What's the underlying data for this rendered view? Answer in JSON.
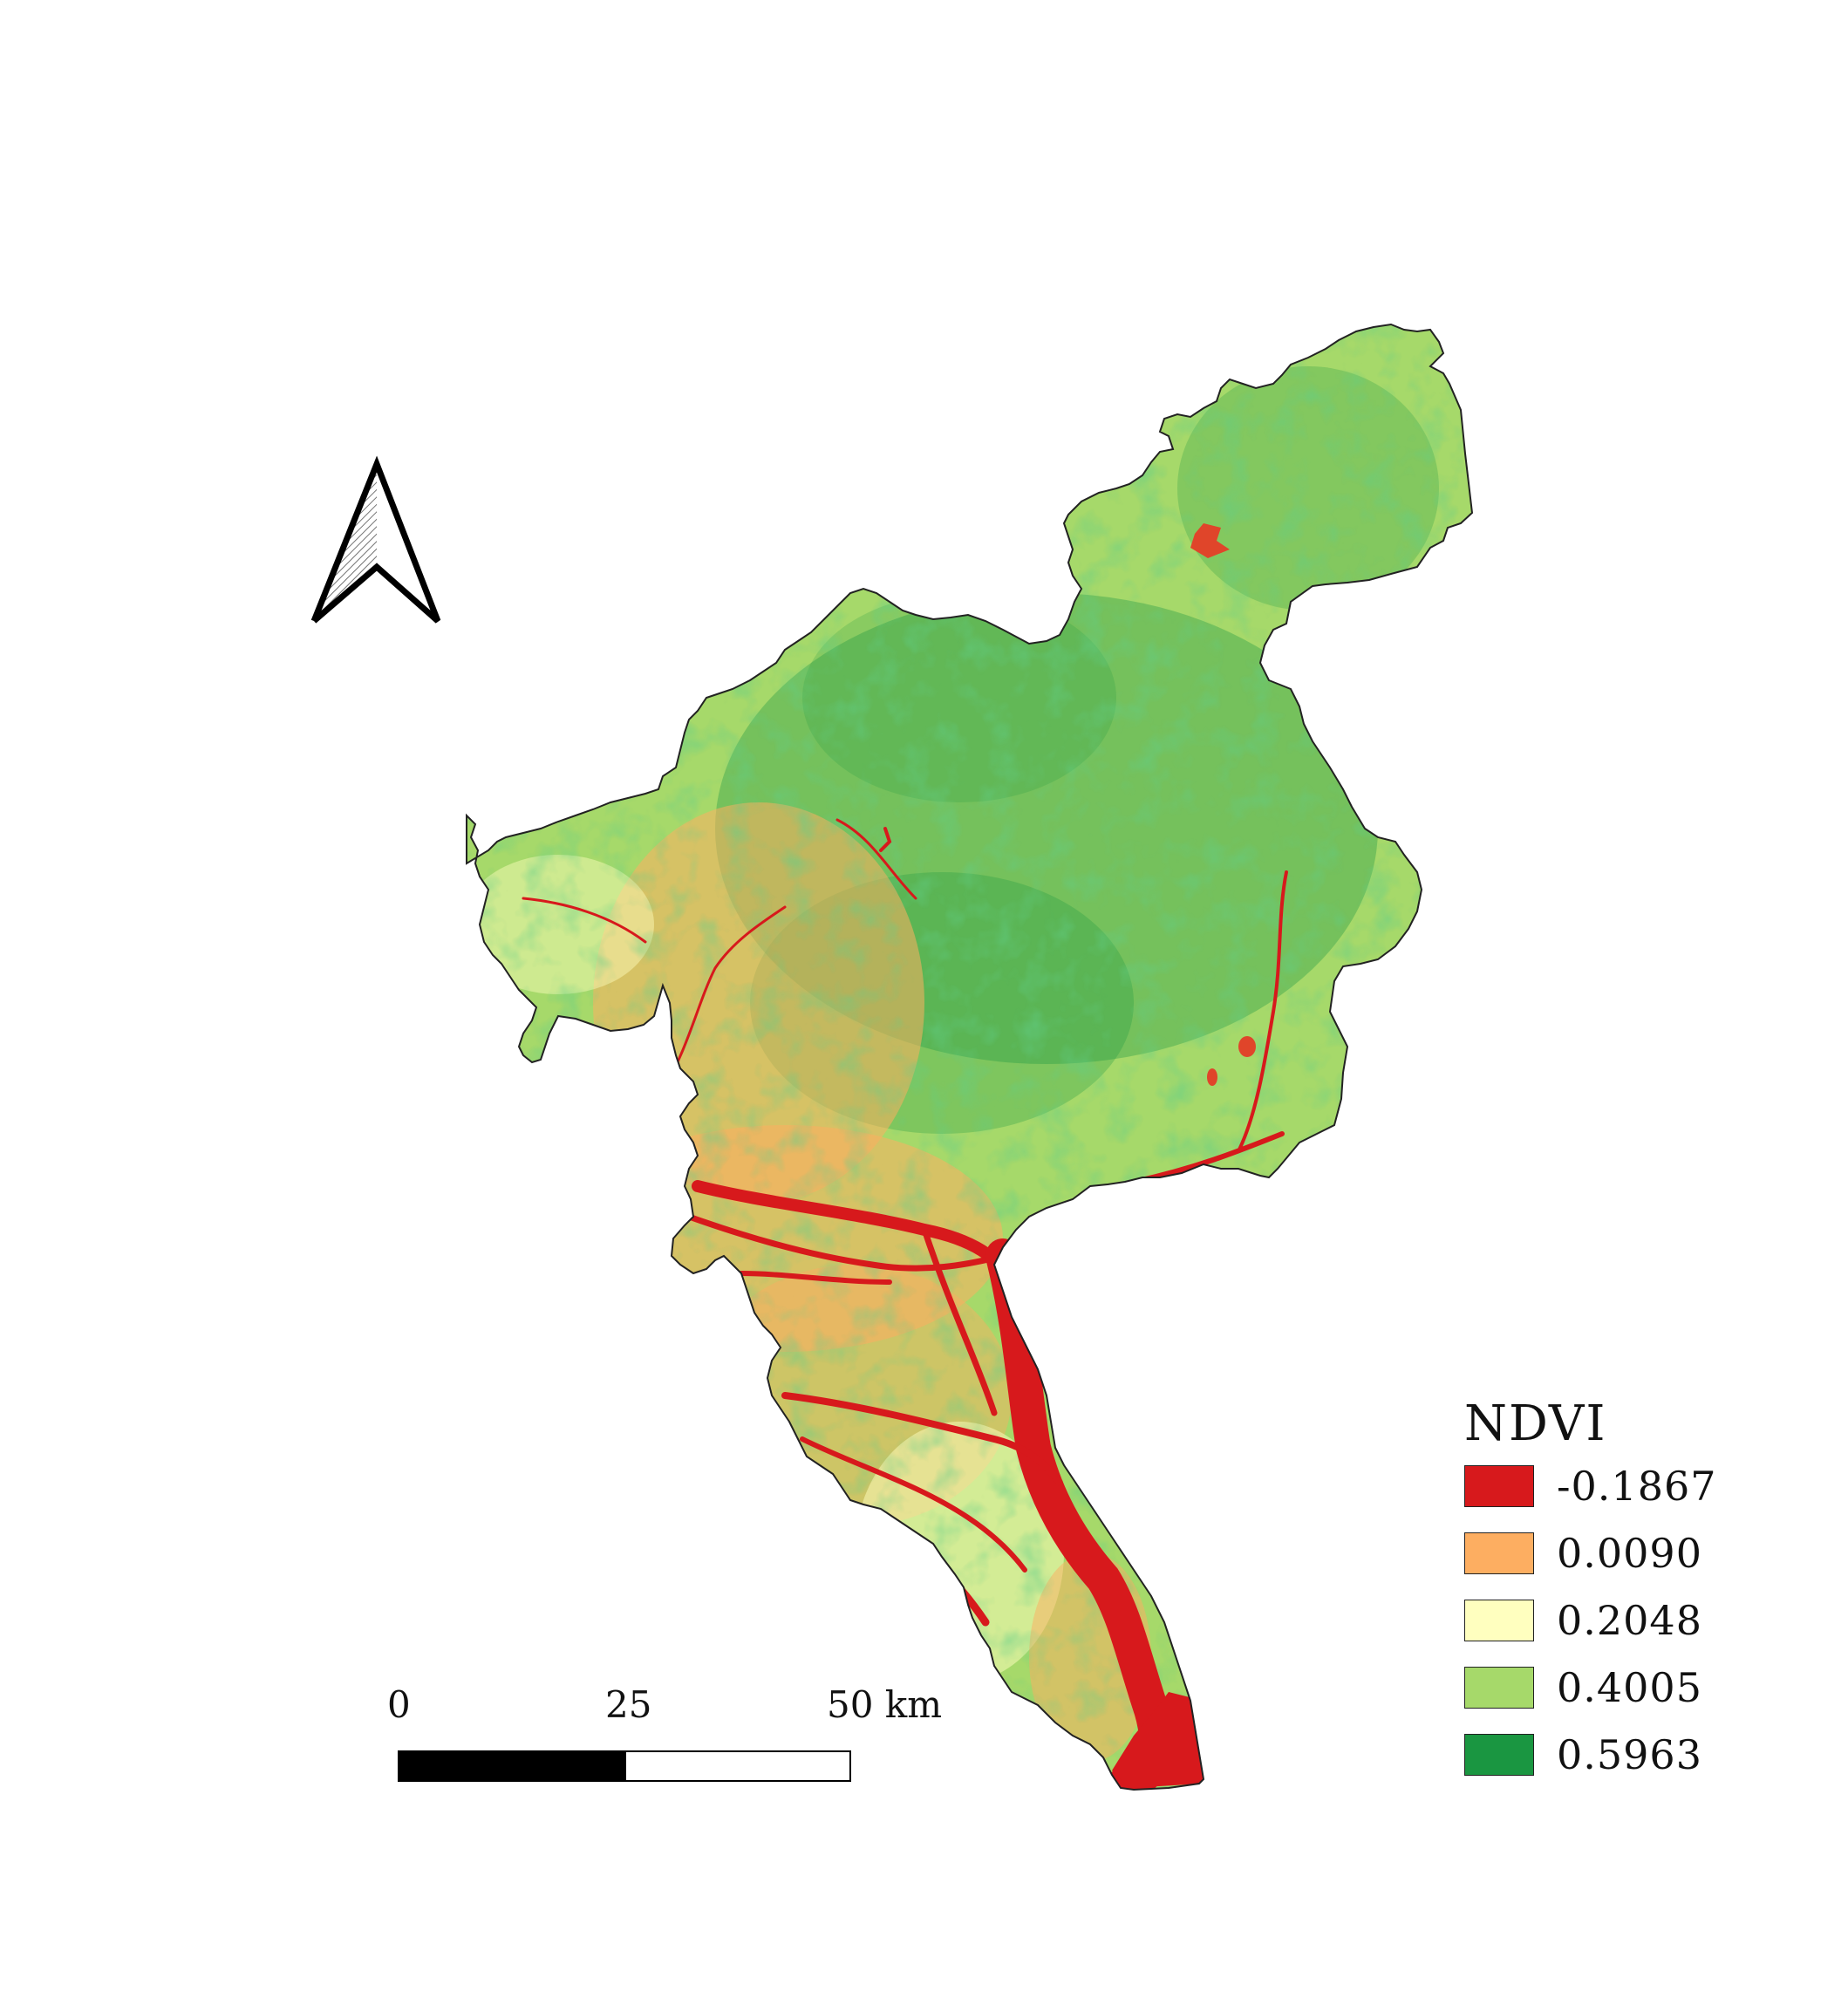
{
  "legend": {
    "title": "NDVI",
    "items": [
      {
        "label": "-0.1867",
        "color": "#d7191c"
      },
      {
        "label": "0.0090",
        "color": "#fdae61"
      },
      {
        "label": "0.2048",
        "color": "#ffffbf"
      },
      {
        "label": "0.4005",
        "color": "#a6d96a"
      },
      {
        "label": "0.5963",
        "color": "#1a9641"
      }
    ]
  },
  "scale_bar": {
    "ticks": [
      "0",
      "25",
      "50 km"
    ]
  },
  "north_arrow": {
    "icon": "north-arrow-icon"
  }
}
